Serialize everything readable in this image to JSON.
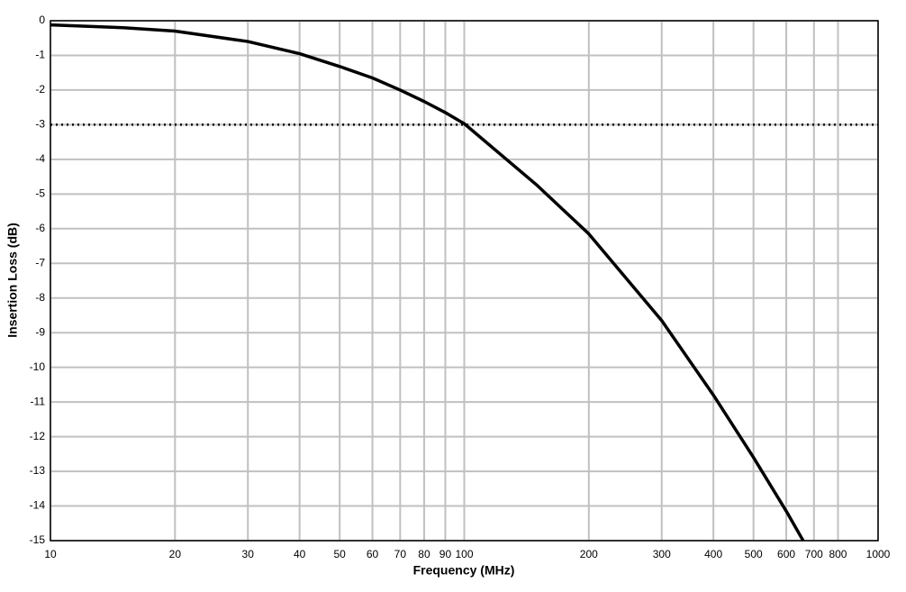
{
  "chart_data": {
    "type": "line",
    "x_label": "Frequency (MHz)",
    "y_label": "Insertion Loss (dB)",
    "x": [
      10,
      15,
      20,
      30,
      40,
      50,
      60,
      70,
      80,
      90,
      100,
      150,
      200,
      300,
      400,
      500,
      600,
      659
    ],
    "series": [
      {
        "color": "#000000",
        "values": [
          -0.12,
          -0.2,
          -0.3,
          -0.6,
          -0.95,
          -1.32,
          -1.65,
          -2.0,
          -2.33,
          -2.65,
          -2.97,
          -4.75,
          -6.15,
          -8.65,
          -10.8,
          -12.6,
          -14.15,
          -15
        ]
      }
    ],
    "xlim": [
      10,
      1000
    ],
    "xscale": "log",
    "xticks": [
      10,
      20,
      30,
      40,
      50,
      60,
      70,
      80,
      90,
      100,
      200,
      300,
      400,
      500,
      600,
      700,
      800,
      1000
    ],
    "ylim": [
      -15,
      0
    ],
    "yticks": [
      0,
      -1,
      -2,
      -3,
      -4,
      -5,
      -6,
      -7,
      -8,
      -9,
      -10,
      -11,
      -12,
      -13,
      -14,
      -15
    ],
    "hline": -3,
    "grid": true
  }
}
